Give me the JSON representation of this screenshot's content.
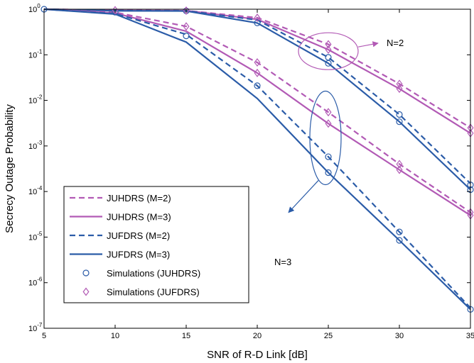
{
  "chart_data": {
    "type": "line",
    "title": "",
    "xlabel": "SNR of R-D Link [dB]",
    "ylabel": "Secrecy Outage Probability",
    "x_scale": "linear",
    "y_scale": "log",
    "xlim": [
      5,
      35
    ],
    "ylim": [
      1e-07,
      1
    ],
    "x_ticks": [
      5,
      10,
      15,
      20,
      25,
      30,
      35
    ],
    "x_tick_labels": [
      "5",
      "10",
      "15",
      "20",
      "25",
      "30",
      "35"
    ],
    "y_ticks": [
      1e-07,
      1e-06,
      1e-05,
      0.0001,
      0.001,
      0.01,
      0.1,
      1
    ],
    "y_tick_labels": [
      {
        "base": "10",
        "exp": "-7"
      },
      {
        "base": "10",
        "exp": "-6"
      },
      {
        "base": "10",
        "exp": "-5"
      },
      {
        "base": "10",
        "exp": "-4"
      },
      {
        "base": "10",
        "exp": "-3"
      },
      {
        "base": "10",
        "exp": "-2"
      },
      {
        "base": "10",
        "exp": "-1"
      },
      {
        "base": "10",
        "exp": "0"
      }
    ],
    "grid": false,
    "legend_position": "bottom-left",
    "colors": {
      "blue": "#2b5ca8",
      "purple": "#b25ab5"
    },
    "legend": [
      {
        "label": "JUHDRS (M=2)",
        "color": "#b25ab5",
        "style": "dashed"
      },
      {
        "label": "JUHDRS (M=3)",
        "color": "#b25ab5",
        "style": "solid"
      },
      {
        "label": "JUFDRS (M=2)",
        "color": "#2b5ca8",
        "style": "dashed"
      },
      {
        "label": "JUFDRS (M=3)",
        "color": "#2b5ca8",
        "style": "solid"
      },
      {
        "label": "Simulations (JUHDRS)",
        "color": "#2b5ca8",
        "marker": "circle"
      },
      {
        "label": "Simulations (JUFDRS)",
        "color": "#b25ab5",
        "marker": "diamond"
      }
    ],
    "series": [
      {
        "group": "N=2",
        "legend_index": 0,
        "color": "#b25ab5",
        "style": "dashed",
        "x": [
          5,
          10,
          15,
          20,
          25,
          30,
          35
        ],
        "y": [
          1.0,
          0.95,
          0.93,
          0.65,
          0.17,
          0.023,
          0.0025
        ]
      },
      {
        "group": "N=2",
        "legend_index": 1,
        "color": "#b25ab5",
        "style": "solid",
        "x": [
          5,
          10,
          15,
          20,
          25,
          30,
          35
        ],
        "y": [
          1.0,
          0.94,
          0.93,
          0.6,
          0.13,
          0.018,
          0.0019
        ]
      },
      {
        "group": "N=2",
        "legend_index": 2,
        "color": "#2b5ca8",
        "style": "dashed",
        "x": [
          5,
          10,
          15,
          20,
          25,
          30,
          35
        ],
        "y": [
          1.0,
          0.93,
          0.92,
          0.58,
          0.088,
          0.0049,
          0.00015
        ]
      },
      {
        "group": "N=2",
        "legend_index": 3,
        "color": "#2b5ca8",
        "style": "solid",
        "x": [
          5,
          10,
          15,
          20,
          25,
          30,
          35
        ],
        "y": [
          1.0,
          0.92,
          0.91,
          0.5,
          0.065,
          0.0034,
          0.00011
        ]
      },
      {
        "group": "N=3",
        "legend_index": 0,
        "color": "#b25ab5",
        "style": "dashed",
        "x": [
          5,
          10,
          15,
          20,
          25,
          30,
          35
        ],
        "y": [
          1.0,
          0.85,
          0.42,
          0.068,
          0.0055,
          0.0004,
          3.5e-05
        ]
      },
      {
        "group": "N=3",
        "legend_index": 1,
        "color": "#b25ab5",
        "style": "solid",
        "x": [
          5,
          10,
          15,
          20,
          25,
          30,
          35
        ],
        "y": [
          1.0,
          0.82,
          0.33,
          0.04,
          0.0031,
          0.0003,
          3e-05
        ]
      },
      {
        "group": "N=3",
        "legend_index": 2,
        "color": "#2b5ca8",
        "style": "dashed",
        "x": [
          5,
          10,
          15,
          20,
          25,
          30,
          35
        ],
        "y": [
          1.0,
          0.8,
          0.28,
          0.021,
          0.00058,
          1.3e-05,
          2.8e-07
        ]
      },
      {
        "group": "N=3",
        "legend_index": 3,
        "color": "#2b5ca8",
        "style": "solid",
        "x": [
          5,
          10,
          15,
          20,
          25,
          30,
          35
        ],
        "y": [
          1.0,
          0.78,
          0.19,
          0.011,
          0.00026,
          8.5e-06,
          2.6e-07
        ]
      }
    ],
    "simulations": [
      {
        "marker": "circle",
        "color": "#2b5ca8",
        "legend_index": 4,
        "points": [
          [
            5,
            1.0
          ],
          [
            10,
            0.86
          ],
          [
            15,
            0.92
          ],
          [
            20,
            0.5
          ],
          [
            25,
            0.065
          ],
          [
            30,
            0.0034
          ],
          [
            35,
            0.00011
          ],
          [
            15,
            0.26
          ],
          [
            20,
            0.021
          ],
          [
            25,
            0.00026
          ],
          [
            30,
            8.5e-06
          ],
          [
            35,
            2.6e-07
          ],
          [
            25,
            0.088
          ],
          [
            30,
            0.0049
          ],
          [
            35,
            0.00014
          ],
          [
            25,
            0.00058
          ],
          [
            30,
            1.3e-05
          ]
        ]
      },
      {
        "marker": "diamond",
        "color": "#b25ab5",
        "legend_index": 5,
        "points": [
          [
            10,
            0.95
          ],
          [
            15,
            0.93
          ],
          [
            20,
            0.65
          ],
          [
            25,
            0.17
          ],
          [
            30,
            0.023
          ],
          [
            35,
            0.0025
          ],
          [
            15,
            0.42
          ],
          [
            20,
            0.068
          ],
          [
            25,
            0.0055
          ],
          [
            30,
            0.0004
          ],
          [
            35,
            3.5e-05
          ],
          [
            20,
            0.04
          ],
          [
            25,
            0.0031
          ],
          [
            30,
            0.0003
          ],
          [
            35,
            3e-05
          ],
          [
            25,
            0.13
          ],
          [
            30,
            0.018
          ],
          [
            35,
            0.0019
          ]
        ]
      }
    ],
    "annotations": [
      {
        "text": "N=2",
        "group": "N=2",
        "ellipse_center": [
          25,
          0.12
        ],
        "arrow_to": [
          28.5,
          0.18
        ]
      },
      {
        "text": "N=3",
        "group": "N=3",
        "ellipse_center": [
          24.8,
          0.0015
        ],
        "arrow_to": [
          22.5,
          4e-05
        ]
      }
    ]
  }
}
